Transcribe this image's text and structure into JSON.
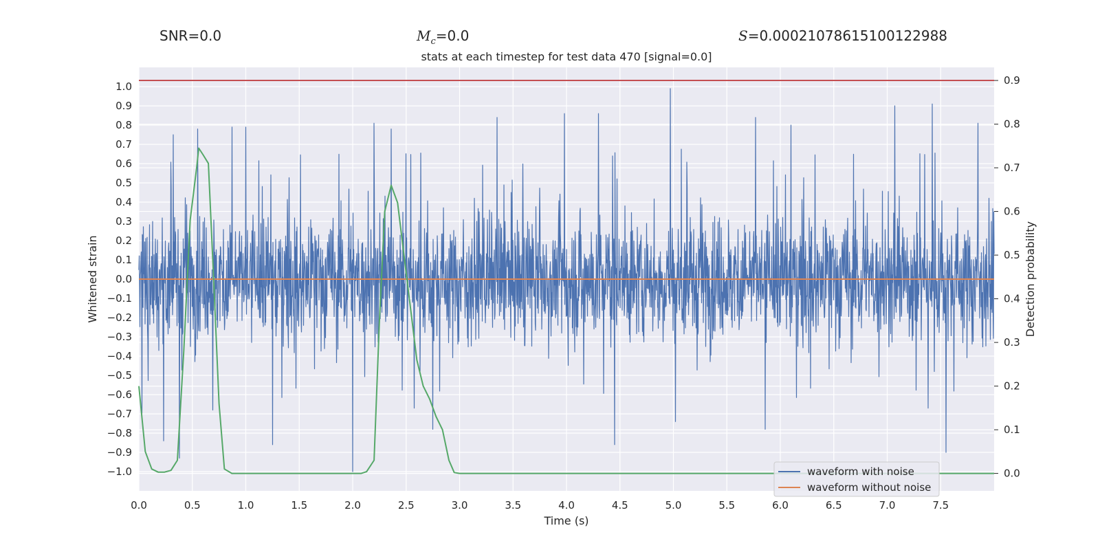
{
  "suptitles": {
    "snr": "SNR=0.0",
    "mc_symbol": "M",
    "mc_sub": "c",
    "mc_value": "=0.0",
    "s_symbol": "S",
    "s_value": "=0.00021078615100122988"
  },
  "chart_data": {
    "type": "line",
    "title": "stats at each timestep for test data 470 [signal=0.0]",
    "xlabel": "Time (s)",
    "ylabel": "Whitened strain",
    "y2label": "Detection probability",
    "xlim": [
      0,
      8
    ],
    "ylim": [
      -1.1,
      1.1
    ],
    "y2lim": [
      -0.04,
      0.93
    ],
    "xticks": [
      "0.0",
      "0.5",
      "1.0",
      "1.5",
      "2.0",
      "2.5",
      "3.0",
      "3.5",
      "4.0",
      "4.5",
      "5.0",
      "5.5",
      "6.0",
      "6.5",
      "7.0",
      "7.5"
    ],
    "yticks": [
      "1.0",
      "0.9",
      "0.8",
      "0.7",
      "0.6",
      "0.5",
      "0.4",
      "0.3",
      "0.2",
      "0.1",
      "0.0",
      "−0.1",
      "−0.2",
      "−0.3",
      "−0.4",
      "−0.5",
      "−0.6",
      "−0.7",
      "−0.8",
      "−0.9",
      "−1.0"
    ],
    "y2ticks": [
      "0.9",
      "0.8",
      "0.7",
      "0.6",
      "0.5",
      "0.4",
      "0.3",
      "0.2",
      "0.1",
      "0.0"
    ],
    "legend_position": "lower-right",
    "series": [
      {
        "name": "waveform with noise",
        "color": "#4c72b0",
        "axis": "left",
        "description": "noise-dominated whitened strain, dense band roughly within ±0.4 with spikes",
        "spikes": [
          {
            "x": 0.23,
            "y": -0.84
          },
          {
            "x": 0.32,
            "y": 0.75
          },
          {
            "x": 0.38,
            "y": -0.93
          },
          {
            "x": 0.55,
            "y": 0.78
          },
          {
            "x": 0.69,
            "y": -0.68
          },
          {
            "x": 0.87,
            "y": 0.79
          },
          {
            "x": 1.0,
            "y": 0.79
          },
          {
            "x": 1.25,
            "y": -0.86
          },
          {
            "x": 2.0,
            "y": -1.0
          },
          {
            "x": 2.2,
            "y": 0.81
          },
          {
            "x": 2.36,
            "y": 0.78
          },
          {
            "x": 2.75,
            "y": -0.78
          },
          {
            "x": 3.35,
            "y": 0.84
          },
          {
            "x": 3.98,
            "y": 0.86
          },
          {
            "x": 4.3,
            "y": 0.86
          },
          {
            "x": 4.45,
            "y": -0.86
          },
          {
            "x": 4.97,
            "y": 0.99
          },
          {
            "x": 5.02,
            "y": -0.74
          },
          {
            "x": 5.77,
            "y": 0.84
          },
          {
            "x": 5.86,
            "y": -0.78
          },
          {
            "x": 6.1,
            "y": 0.8
          },
          {
            "x": 7.07,
            "y": 0.9
          },
          {
            "x": 7.42,
            "y": 0.91
          },
          {
            "x": 7.55,
            "y": -0.9
          },
          {
            "x": 7.85,
            "y": 0.81
          }
        ]
      },
      {
        "name": "waveform without noise",
        "color": "#dd8452",
        "axis": "left",
        "x": [
          0,
          8
        ],
        "y": [
          0,
          0
        ]
      },
      {
        "name": "detection probability",
        "color": "#55a868",
        "axis": "right",
        "x": [
          0.0,
          0.06,
          0.12,
          0.18,
          0.24,
          0.3,
          0.36,
          0.42,
          0.48,
          0.54,
          0.56,
          0.6,
          0.65,
          0.7,
          0.75,
          0.8,
          0.87,
          1.0,
          1.5,
          2.0,
          2.08,
          2.13,
          2.2,
          2.25,
          2.3,
          2.36,
          2.42,
          2.48,
          2.54,
          2.6,
          2.66,
          2.72,
          2.78,
          2.84,
          2.9,
          2.95,
          3.0,
          5.0,
          8.0
        ],
        "y": [
          0.2,
          0.05,
          0.01,
          0.003,
          0.003,
          0.007,
          0.03,
          0.28,
          0.58,
          0.7,
          0.745,
          0.73,
          0.71,
          0.44,
          0.16,
          0.01,
          0.0,
          0.0,
          0.0,
          0.0,
          0.0,
          0.004,
          0.03,
          0.35,
          0.6,
          0.66,
          0.62,
          0.5,
          0.38,
          0.26,
          0.2,
          0.17,
          0.13,
          0.1,
          0.03,
          0.002,
          0.0,
          0.0,
          0.0
        ]
      },
      {
        "name": "threshold",
        "color": "#c44e52",
        "axis": "right",
        "x": [
          0,
          8
        ],
        "y": [
          0.9,
          0.9
        ]
      }
    ],
    "legend": [
      "waveform with noise",
      "waveform without noise"
    ]
  }
}
